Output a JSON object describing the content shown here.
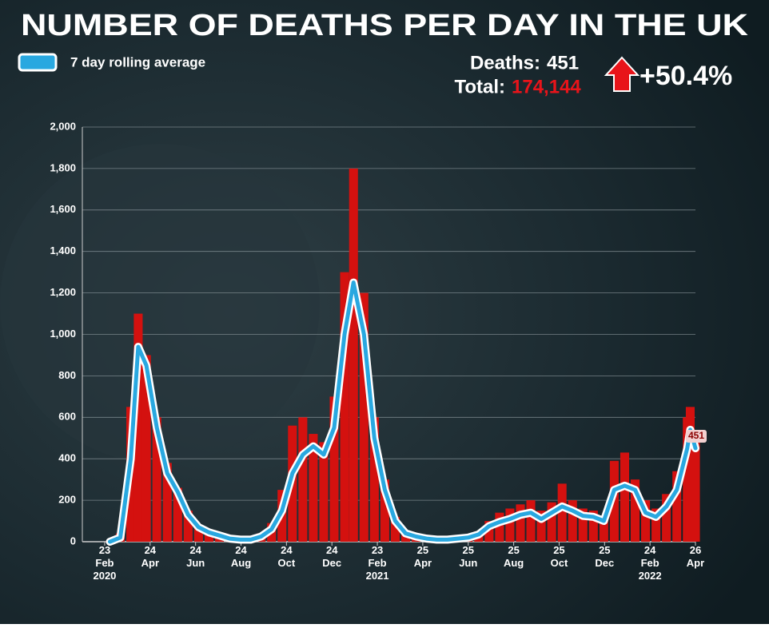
{
  "chart_data": {
    "type": "bar-line",
    "title": "NUMBER OF DEATHS PER DAY IN THE UK",
    "deaths_label": "Deaths:",
    "deaths": 451,
    "total_label": "Total:",
    "total": "174,144",
    "change": "+50.4%",
    "x": [
      "2020-03-01",
      "2020-03-15",
      "2020-03-29",
      "2020-04-08",
      "2020-04-19",
      "2020-05-03",
      "2020-05-17",
      "2020-05-31",
      "2020-06-14",
      "2020-06-28",
      "2020-07-12",
      "2020-07-26",
      "2020-08-09",
      "2020-08-23",
      "2020-09-06",
      "2020-09-20",
      "2020-10-04",
      "2020-10-18",
      "2020-11-01",
      "2020-11-15",
      "2020-11-29",
      "2020-12-13",
      "2020-12-27",
      "2021-01-10",
      "2021-01-22",
      "2021-02-05",
      "2021-02-19",
      "2021-03-05",
      "2021-03-19",
      "2021-04-02",
      "2021-04-16",
      "2021-04-30",
      "2021-05-14",
      "2021-05-28",
      "2021-06-11",
      "2021-06-25",
      "2021-07-09",
      "2021-07-23",
      "2021-08-06",
      "2021-08-20",
      "2021-09-03",
      "2021-09-17",
      "2021-10-01",
      "2021-10-15",
      "2021-10-29",
      "2021-11-12",
      "2021-11-26",
      "2021-12-10",
      "2021-12-24",
      "2022-01-07",
      "2022-01-21",
      "2022-02-04",
      "2022-02-18",
      "2022-03-04",
      "2022-03-18",
      "2022-04-01",
      "2022-04-15",
      "2022-04-19",
      "2022-04-26"
    ],
    "series": [
      {
        "color": "#d4110f",
        "values": [
          2,
          40,
          650,
          1100,
          900,
          600,
          380,
          260,
          150,
          80,
          50,
          35,
          20,
          15,
          15,
          40,
          90,
          250,
          560,
          600,
          520,
          480,
          700,
          1300,
          1800,
          1200,
          600,
          300,
          120,
          50,
          30,
          20,
          12,
          12,
          20,
          30,
          50,
          100,
          140,
          160,
          180,
          200,
          150,
          190,
          280,
          200,
          160,
          150,
          120,
          390,
          430,
          300,
          200,
          160,
          230,
          340,
          600,
          650,
          480
        ]
      },
      {
        "name": "7 day rolling average",
        "color": "#29a8e0",
        "values": [
          0,
          20,
          400,
          940,
          850,
          550,
          330,
          240,
          130,
          70,
          45,
          30,
          15,
          10,
          10,
          25,
          60,
          150,
          330,
          420,
          460,
          420,
          550,
          1000,
          1250,
          1000,
          500,
          250,
          100,
          40,
          25,
          15,
          10,
          10,
          15,
          20,
          35,
          75,
          95,
          110,
          130,
          140,
          110,
          140,
          170,
          150,
          125,
          120,
          100,
          250,
          270,
          250,
          140,
          120,
          170,
          250,
          450,
          540,
          451
        ]
      }
    ],
    "xlim": [
      "2020-01-24",
      "2022-04-26"
    ],
    "xticks": [
      {
        "value": "2020-02-23",
        "label": "23 Feb 2020"
      },
      {
        "value": "2020-04-24",
        "label": "24 Apr"
      },
      {
        "value": "2020-06-24",
        "label": "24 Jun"
      },
      {
        "value": "2020-08-24",
        "label": "24 Aug"
      },
      {
        "value": "2020-10-24",
        "label": "24 Oct"
      },
      {
        "value": "2020-12-24",
        "label": "24 Dec"
      },
      {
        "value": "2021-02-23",
        "label": "23 Feb 2021"
      },
      {
        "value": "2021-04-25",
        "label": "25 Apr"
      },
      {
        "value": "2021-06-25",
        "label": "25 Jun"
      },
      {
        "value": "2021-08-25",
        "label": "25 Aug"
      },
      {
        "value": "2021-10-25",
        "label": "25 Oct"
      },
      {
        "value": "2021-12-25",
        "label": "25 Dec"
      },
      {
        "value": "2022-02-24",
        "label": "24 Feb 2022"
      },
      {
        "value": "2022-04-26",
        "label": "26 Apr"
      }
    ],
    "ylim": [
      0,
      2000
    ],
    "yticks": [
      0,
      {
        "value": 200,
        "label": "200"
      },
      400,
      600,
      800,
      {
        "value": 1000,
        "label": "1,000"
      },
      {
        "value": 1200,
        "label": "1,200"
      },
      {
        "value": 1400,
        "label": "1,400"
      },
      {
        "value": 1600,
        "label": "1,600"
      },
      {
        "value": 1800,
        "label": "1,800"
      },
      {
        "value": 2000,
        "label": "2,000"
      }
    ],
    "grid": true
  }
}
